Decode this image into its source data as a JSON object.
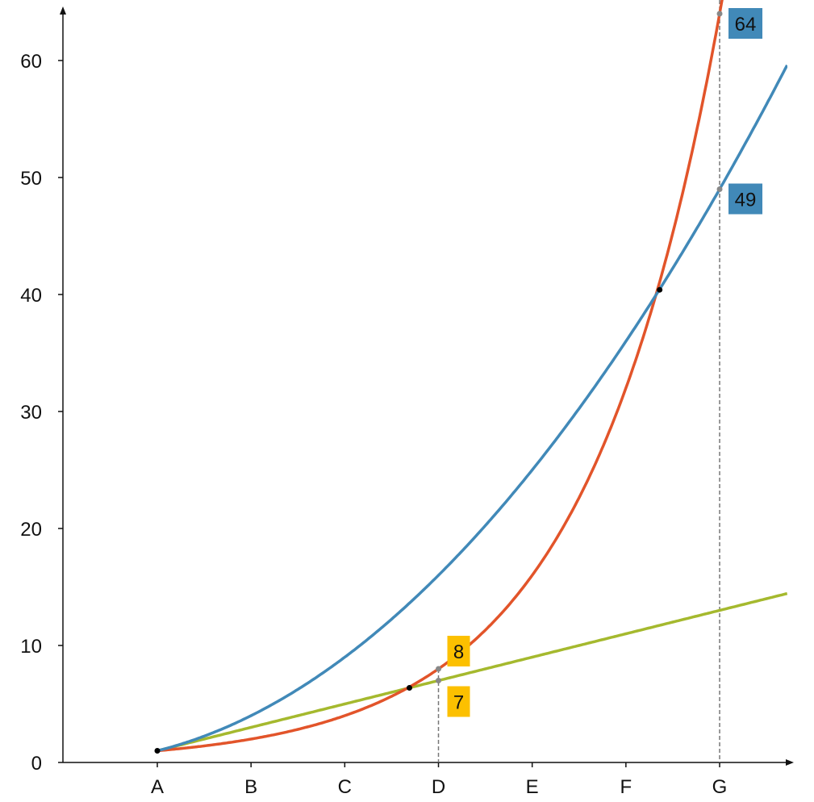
{
  "chart_data": {
    "type": "line",
    "categories": [
      "A",
      "B",
      "C",
      "D",
      "E",
      "F",
      "G"
    ],
    "x_range": [
      0,
      6.72
    ],
    "ylim": [
      0,
      64
    ],
    "y_ticks": [
      0,
      10,
      20,
      30,
      40,
      50,
      60
    ],
    "grid": false,
    "series": [
      {
        "formula": "2^x",
        "color": "#e2542a",
        "values": [
          1,
          2,
          4,
          8,
          16,
          32,
          64
        ]
      },
      {
        "formula": "(x+1)^2",
        "color": "#4189b8",
        "values": [
          1,
          4,
          9,
          16,
          25,
          36,
          49
        ]
      },
      {
        "formula": "2x+1",
        "color": "#a5b92e",
        "values": [
          1,
          3,
          5,
          7,
          9,
          11,
          13
        ]
      }
    ],
    "intersections": [
      {
        "x": 0,
        "y": 1
      },
      {
        "x": 2.69,
        "y": 6.38
      },
      {
        "x": 5.36,
        "y": 40.4
      }
    ],
    "markers": [
      {
        "category": "D",
        "labels": [
          {
            "text": "8",
            "value": 8,
            "color": "#fcc000",
            "position": "above"
          },
          {
            "text": "7",
            "value": 7,
            "color": "#fcc000",
            "position": "below"
          }
        ]
      },
      {
        "category": "G",
        "labels": [
          {
            "text": "64",
            "value": 64,
            "color": "#4189b8",
            "position": "right"
          },
          {
            "text": "49",
            "value": 49,
            "color": "#4189b8",
            "position": "right"
          }
        ]
      }
    ]
  }
}
